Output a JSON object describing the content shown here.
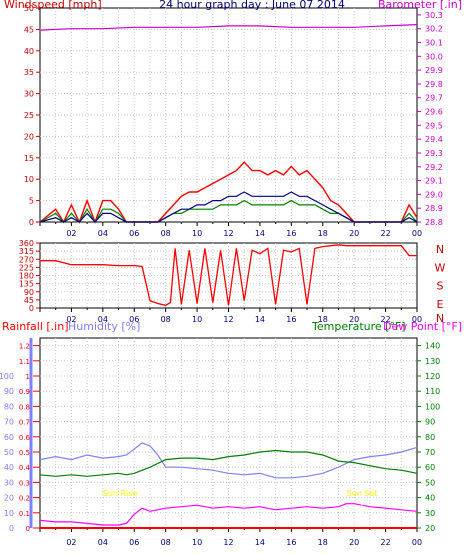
{
  "chart_data": [
    {
      "type": "line",
      "title": "24 hour graph day : June 07 2014",
      "y_left_label": "Windspeed [mph]",
      "y_right_label": "Barometer [.in]",
      "x_tick_labels": [
        "02",
        "04",
        "06",
        "08",
        "10",
        "12",
        "14",
        "16",
        "18",
        "20",
        "22",
        "00"
      ],
      "y_left_ticks": [
        0,
        5,
        10,
        15,
        20,
        25,
        30,
        35,
        40,
        45,
        50
      ],
      "y_right_ticks": [
        28.8,
        28.9,
        29,
        29.1,
        29.2,
        29.3,
        29.4,
        29.5,
        29.6,
        29.7,
        29.8,
        29.9,
        30,
        30.1,
        30.2,
        30.3
      ],
      "ylim_left": [
        0,
        50
      ],
      "ylim_right": [
        28.8,
        30.35
      ],
      "grid": true,
      "colors": {
        "gust": "#ff0000",
        "wind": "#008000",
        "average": "#000080",
        "barometer": "#cc00cc"
      },
      "series": [
        {
          "role": "gust",
          "x": [
            0,
            1,
            1.5,
            2,
            2.5,
            3,
            3.5,
            4,
            4.5,
            5,
            5.5,
            6,
            7,
            7.5,
            8,
            8.5,
            9,
            9.5,
            10,
            10.5,
            11,
            11.5,
            12,
            12.5,
            13,
            13.5,
            14,
            14.5,
            15,
            15.5,
            16,
            16.5,
            17,
            17.5,
            18,
            18.5,
            19,
            19.5,
            20,
            21,
            22,
            23,
            23.5,
            24
          ],
          "values": [
            0,
            3,
            0,
            4,
            0,
            5,
            0,
            5,
            5,
            3,
            0,
            0,
            0,
            0,
            2,
            4,
            6,
            7,
            7,
            8,
            9,
            10,
            11,
            12,
            14,
            12,
            12,
            11,
            12,
            11,
            13,
            11,
            12,
            10,
            8,
            5,
            4,
            2,
            0,
            0,
            0,
            0,
            4,
            1
          ]
        },
        {
          "role": "wind",
          "x": [
            0,
            1,
            1.5,
            2,
            2.5,
            3,
            3.5,
            4,
            4.5,
            5,
            5.5,
            6,
            7,
            7.5,
            8,
            8.5,
            9,
            9.5,
            10,
            10.5,
            11,
            11.5,
            12,
            12.5,
            13,
            13.5,
            14,
            14.5,
            15,
            15.5,
            16,
            16.5,
            17,
            17.5,
            18,
            18.5,
            19,
            19.5,
            20,
            21,
            22,
            23,
            23.5,
            24
          ],
          "values": [
            0,
            2,
            0,
            2,
            0,
            3,
            0,
            3,
            3,
            2,
            0,
            0,
            0,
            0,
            1,
            2,
            2,
            3,
            3,
            3,
            3,
            4,
            4,
            4,
            5,
            4,
            4,
            4,
            4,
            4,
            5,
            4,
            4,
            4,
            3,
            2,
            2,
            1,
            0,
            0,
            0,
            0,
            2,
            0
          ]
        },
        {
          "role": "average",
          "x": [
            0,
            1,
            1.5,
            2,
            2.5,
            3,
            3.5,
            4,
            4.5,
            5,
            5.5,
            6,
            7,
            7.5,
            8,
            8.5,
            9,
            9.5,
            10,
            10.5,
            11,
            11.5,
            12,
            12.5,
            13,
            13.5,
            14,
            14.5,
            15,
            15.5,
            16,
            16.5,
            17,
            17.5,
            18,
            18.5,
            19,
            19.5,
            20,
            21,
            22,
            23,
            23.5,
            24
          ],
          "values": [
            0,
            1,
            0,
            1,
            0,
            2,
            0,
            2,
            2,
            1,
            0,
            0,
            0,
            0,
            1,
            2,
            3,
            3,
            4,
            4,
            5,
            5,
            6,
            6,
            7,
            6,
            6,
            6,
            6,
            6,
            7,
            6,
            6,
            5,
            4,
            3,
            2,
            1,
            0,
            0,
            0,
            0,
            1,
            0
          ]
        },
        {
          "role": "barometer",
          "x": [
            0,
            2,
            4,
            6,
            8,
            10,
            12,
            14,
            16,
            18,
            20,
            22,
            24
          ],
          "values": [
            30.19,
            30.2,
            30.2,
            30.21,
            30.21,
            30.21,
            30.22,
            30.22,
            30.21,
            30.21,
            30.21,
            30.22,
            30.23
          ]
        }
      ]
    },
    {
      "type": "line",
      "y_left_ticks": [
        0,
        45,
        90,
        135,
        180,
        225,
        270,
        315,
        360
      ],
      "y_right_labels": [
        "N",
        "W",
        "S",
        "E",
        "N"
      ],
      "ylim": [
        0,
        360
      ],
      "x_tick_labels": [
        "02",
        "04",
        "06",
        "08",
        "10",
        "12",
        "14",
        "16",
        "18",
        "20",
        "22",
        "00"
      ],
      "color": "#ff0000",
      "series": [
        {
          "role": "wind-direction",
          "x": [
            0,
            1,
            2,
            3,
            4,
            5,
            6,
            6.5,
            7,
            7.5,
            8,
            8.3,
            8.6,
            9,
            9.5,
            10,
            10.5,
            11,
            11.5,
            12,
            12.5,
            13,
            13.5,
            14,
            14.5,
            15,
            15.5,
            16,
            16.5,
            17,
            17.5,
            18,
            18.5,
            19,
            19.5,
            20,
            21,
            22,
            23,
            23.5,
            24
          ],
          "values": [
            262,
            262,
            240,
            240,
            240,
            235,
            235,
            230,
            40,
            25,
            15,
            30,
            330,
            20,
            320,
            25,
            330,
            30,
            320,
            15,
            330,
            40,
            320,
            300,
            330,
            20,
            320,
            310,
            330,
            20,
            330,
            340,
            345,
            350,
            345,
            345,
            345,
            345,
            345,
            290,
            290
          ]
        }
      ]
    },
    {
      "type": "line",
      "y_left_label": "Rainfall [.in]",
      "humidity_label": "Humidity [%]",
      "temperature_label": "Temperature [°F]",
      "dewpoint_label": "Dew Point [°F]",
      "rain_ticks": [
        0,
        0.1,
        0.2,
        0.3,
        0.4,
        0.5,
        0.6,
        0.7,
        0.8,
        0.9,
        1,
        1.1,
        1.2
      ],
      "humidity_ticks": [
        0,
        10,
        20,
        30,
        40,
        50,
        60,
        70,
        80,
        90,
        100
      ],
      "temp_ticks": [
        20,
        30,
        40,
        50,
        60,
        70,
        80,
        90,
        100,
        110,
        120,
        130,
        140
      ],
      "x_tick_labels": [
        "02",
        "04",
        "06",
        "08",
        "10",
        "12",
        "14",
        "16",
        "18",
        "20",
        "22",
        "00"
      ],
      "ylim_temp": [
        20,
        145
      ],
      "annotations": [
        {
          "text": "Sun Rise",
          "x": 5.1
        },
        {
          "text": "Sun Set",
          "x": 20.5
        }
      ],
      "colors": {
        "rainfall": "#ff0000",
        "humidity": "#8080ff",
        "temperature": "#008000",
        "dew_point": "#ff00ff",
        "sun": "#ffff00"
      },
      "series": [
        {
          "role": "humidity",
          "x": [
            0,
            1,
            2,
            3,
            4,
            5,
            5.5,
            6,
            6.5,
            7,
            7.5,
            8,
            9,
            10,
            11,
            12,
            13,
            14,
            15,
            16,
            17,
            18,
            19,
            20,
            21,
            22,
            23,
            24
          ],
          "values": [
            45,
            47,
            45,
            48,
            46,
            47,
            48,
            52,
            56,
            54,
            48,
            40,
            40,
            39,
            38,
            36,
            35,
            36,
            33,
            33,
            34,
            36,
            40,
            45,
            47,
            48,
            50,
            53
          ]
        },
        {
          "role": "temperature",
          "x": [
            0,
            1,
            2,
            3,
            4,
            5,
            5.5,
            6,
            7,
            8,
            9,
            10,
            11,
            12,
            13,
            14,
            15,
            16,
            17,
            18,
            19,
            20,
            21,
            22,
            23,
            24
          ],
          "values": [
            55,
            54,
            55,
            54,
            55,
            56,
            55,
            56,
            60,
            65,
            66,
            66,
            65,
            67,
            68,
            70,
            71,
            70,
            70,
            68,
            64,
            63,
            61,
            59,
            58,
            56
          ]
        },
        {
          "role": "dew-point",
          "x": [
            0,
            1,
            2,
            3,
            4,
            4.5,
            5,
            5.5,
            6,
            6.5,
            7,
            8,
            9,
            10,
            11,
            12,
            13,
            14,
            15,
            16,
            17,
            18,
            19,
            19.5,
            20,
            21,
            22,
            23,
            24
          ],
          "values": [
            25,
            24,
            24,
            23,
            22,
            22,
            22,
            23,
            29,
            33,
            31,
            33,
            34,
            35,
            33,
            34,
            33,
            34,
            32,
            33,
            34,
            33,
            34,
            36,
            36,
            34,
            33,
            32,
            31
          ]
        },
        {
          "role": "rainfall",
          "x": [
            0,
            24
          ],
          "values": [
            0,
            0
          ]
        }
      ]
    }
  ]
}
